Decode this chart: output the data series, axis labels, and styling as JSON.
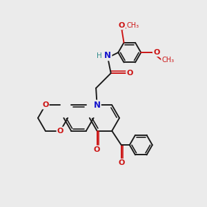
{
  "background_color": "#ebebeb",
  "bond_color": "#1a1a1a",
  "nitrogen_color": "#1414cc",
  "oxygen_color": "#cc1414",
  "hydrogen_color": "#2e8b8b",
  "bond_width": 1.4,
  "figsize": [
    3.0,
    3.0
  ],
  "dpi": 100,
  "xlim": [
    0,
    10
  ],
  "ylim": [
    0,
    10
  ]
}
